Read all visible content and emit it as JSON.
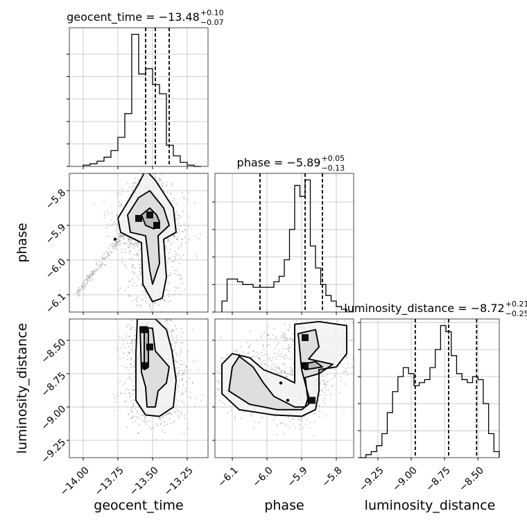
{
  "chart_data": {
    "type": "corner",
    "parameters": [
      {
        "name": "geocent_time",
        "xlabel": "geocent_time",
        "title_main": "geocent_time = −13.48",
        "title_sup": "+0.10",
        "title_sub": "−0.07",
        "median": -13.48,
        "q_lo": -13.55,
        "q_hi": -13.38,
        "range": [
          -14.1,
          -13.1
        ],
        "ticks": [
          -14.0,
          -13.75,
          -13.5,
          -13.25
        ],
        "tick_labels": [
          "−14.00",
          "−13.75",
          "−13.50",
          "−13.25"
        ],
        "hist": {
          "edges": [
            -14.0,
            -13.95,
            -13.9,
            -13.85,
            -13.8,
            -13.75,
            -13.7,
            -13.65,
            -13.6,
            -13.55,
            -13.5,
            -13.45,
            -13.4,
            -13.35,
            -13.3,
            -13.25,
            -13.2,
            -13.15
          ],
          "counts": [
            1,
            2,
            4,
            7,
            12,
            22,
            40,
            100,
            70,
            74,
            62,
            55,
            16,
            8,
            3,
            1,
            0
          ]
        }
      },
      {
        "name": "phase",
        "xlabel": "phase",
        "ylabel": "phase",
        "title_main": "phase = −5.89",
        "title_sup": "+0.05",
        "title_sub": "−0.13",
        "median": -5.89,
        "q_lo": -6.02,
        "q_hi": -5.84,
        "range": [
          -6.15,
          -5.75
        ],
        "ticks": [
          -6.1,
          -6.0,
          -5.9,
          -5.8
        ],
        "tick_labels": [
          "−6.1",
          "−6.0",
          "−5.9",
          "−5.8"
        ],
        "hist": {
          "edges": [
            -6.13,
            -6.115,
            -6.1,
            -6.085,
            -6.07,
            -6.055,
            -6.04,
            -6.025,
            -6.01,
            -5.995,
            -5.98,
            -5.965,
            -5.95,
            -5.935,
            -5.92,
            -5.905,
            -5.89,
            -5.875,
            -5.86,
            -5.845,
            -5.83,
            -5.815,
            -5.8,
            -5.785,
            -5.77
          ],
          "counts": [
            8,
            24,
            24,
            22,
            20,
            20,
            18,
            18,
            18,
            18,
            22,
            26,
            38,
            60,
            92,
            84,
            96,
            48,
            32,
            20,
            12,
            8,
            4,
            2
          ]
        }
      },
      {
        "name": "luminosity_distance",
        "xlabel": "luminosity_distance",
        "ylabel": "luminosity_distance",
        "title_main": "luminosity_distance = −8.72",
        "title_sup": "+0.21",
        "title_sub": "−0.25",
        "median": -8.72,
        "q_lo": -8.97,
        "q_hi": -8.51,
        "range": [
          -9.38,
          -8.34
        ],
        "ticks": [
          -9.25,
          -9.0,
          -8.75,
          -8.5
        ],
        "tick_labels": [
          "−9.25",
          "−9.00",
          "−8.75",
          "−8.50"
        ],
        "hist": {
          "edges": [
            -9.38,
            -9.34,
            -9.3,
            -9.26,
            -9.22,
            -9.18,
            -9.14,
            -9.1,
            -9.06,
            -9.02,
            -8.98,
            -8.94,
            -8.9,
            -8.86,
            -8.82,
            -8.78,
            -8.74,
            -8.7,
            -8.66,
            -8.62,
            -8.58,
            -8.54,
            -8.5,
            -8.46,
            -8.42,
            -8.38,
            -8.34
          ],
          "counts": [
            0,
            2,
            4,
            8,
            16,
            30,
            44,
            54,
            60,
            56,
            48,
            50,
            52,
            60,
            72,
            88,
            84,
            68,
            56,
            52,
            50,
            54,
            52,
            36,
            16,
            4
          ]
        }
      }
    ],
    "hist_yticks": {
      "geocent_time": [
        0,
        17,
        34,
        51,
        68,
        85
      ],
      "phase": [
        0,
        20,
        40,
        60,
        80
      ],
      "luminosity_distance": [
        0,
        18,
        36,
        54,
        72,
        90
      ]
    },
    "pairs": [
      {
        "x": "geocent_time",
        "y": "phase",
        "contours": [
          [
            [
              -13.58,
              -5.87
            ],
            [
              -13.52,
              -5.85
            ],
            [
              -13.47,
              -5.87
            ],
            [
              -13.45,
              -5.89
            ],
            [
              -13.49,
              -5.91
            ],
            [
              -13.55,
              -5.9
            ]
          ],
          [
            [
              -13.68,
              -5.87
            ],
            [
              -13.6,
              -5.82
            ],
            [
              -13.52,
              -5.8
            ],
            [
              -13.42,
              -5.85
            ],
            [
              -13.38,
              -5.9
            ],
            [
              -13.46,
              -5.93
            ],
            [
              -13.45,
              -6.01
            ],
            [
              -13.5,
              -6.07
            ],
            [
              -13.52,
              -6.03
            ],
            [
              -13.55,
              -5.93
            ],
            [
              -13.66,
              -5.92
            ]
          ],
          [
            [
              -13.75,
              -5.88
            ],
            [
              -13.6,
              -5.78
            ],
            [
              -13.55,
              -5.74
            ],
            [
              -13.48,
              -5.77
            ],
            [
              -13.35,
              -5.85
            ],
            [
              -13.33,
              -5.92
            ],
            [
              -13.42,
              -5.94
            ],
            [
              -13.4,
              -6.05
            ],
            [
              -13.43,
              -6.11
            ],
            [
              -13.5,
              -6.12
            ],
            [
              -13.57,
              -6.07
            ],
            [
              -13.58,
              -5.95
            ],
            [
              -13.73,
              -5.92
            ]
          ]
        ],
        "peaks": [
          [
            -13.52,
            -5.87
          ],
          [
            -13.47,
            -5.9
          ],
          [
            -13.6,
            -5.88
          ]
        ],
        "extra_points": [
          [
            -13.77,
            -5.94
          ]
        ]
      },
      {
        "x": "geocent_time",
        "y": "luminosity_distance",
        "contours": [
          [
            [
              -13.56,
              -8.4
            ],
            [
              -13.53,
              -8.42
            ],
            [
              -13.53,
              -8.7
            ],
            [
              -13.56,
              -8.72
            ]
          ],
          [
            [
              -13.59,
              -8.4
            ],
            [
              -13.5,
              -8.41
            ],
            [
              -13.48,
              -8.58
            ],
            [
              -13.38,
              -8.7
            ],
            [
              -13.4,
              -8.82
            ],
            [
              -13.46,
              -8.88
            ],
            [
              -13.48,
              -9.0
            ],
            [
              -13.54,
              -9.0
            ],
            [
              -13.55,
              -8.85
            ],
            [
              -13.58,
              -8.74
            ]
          ],
          [
            [
              -13.61,
              -8.34
            ],
            [
              -13.48,
              -8.34
            ],
            [
              -13.4,
              -8.42
            ],
            [
              -13.36,
              -8.58
            ],
            [
              -13.33,
              -8.8
            ],
            [
              -13.35,
              -9.0
            ],
            [
              -13.45,
              -9.07
            ],
            [
              -13.55,
              -9.06
            ],
            [
              -13.62,
              -8.95
            ],
            [
              -13.62,
              -8.6
            ]
          ]
        ],
        "peaks": [
          [
            -13.56,
            -8.42
          ],
          [
            -13.56,
            -8.69
          ],
          [
            -13.52,
            -8.55
          ]
        ]
      },
      {
        "x": "phase",
        "y": "luminosity_distance",
        "contours": [
          [
            [
              -5.9,
              -8.68
            ],
            [
              -5.86,
              -8.66
            ],
            [
              -5.84,
              -8.7
            ],
            [
              -5.89,
              -8.72
            ]
          ],
          [
            [
              -6.1,
              -8.7
            ],
            [
              -6.08,
              -8.62
            ],
            [
              -6.04,
              -8.7
            ],
            [
              -6.01,
              -8.82
            ],
            [
              -5.98,
              -8.92
            ],
            [
              -5.92,
              -9.0
            ],
            [
              -5.89,
              -9.0
            ],
            [
              -5.88,
              -8.92
            ],
            [
              -5.9,
              -8.72
            ],
            [
              -5.91,
              -8.45
            ],
            [
              -5.86,
              -8.42
            ],
            [
              -5.85,
              -8.55
            ],
            [
              -5.88,
              -8.64
            ],
            [
              -5.81,
              -8.68
            ],
            [
              -5.85,
              -8.75
            ],
            [
              -5.89,
              -8.78
            ],
            [
              -5.88,
              -8.98
            ],
            [
              -5.9,
              -9.02
            ],
            [
              -5.97,
              -9.02
            ],
            [
              -6.05,
              -8.98
            ],
            [
              -6.11,
              -8.88
            ]
          ],
          [
            [
              -6.13,
              -8.68
            ],
            [
              -6.1,
              -8.6
            ],
            [
              -6.05,
              -8.63
            ],
            [
              -6.01,
              -8.72
            ],
            [
              -5.95,
              -8.78
            ],
            [
              -5.92,
              -8.82
            ],
            [
              -5.92,
              -8.5
            ],
            [
              -5.92,
              -8.38
            ],
            [
              -5.85,
              -8.36
            ],
            [
              -5.77,
              -8.39
            ],
            [
              -5.77,
              -8.6
            ],
            [
              -5.8,
              -8.7
            ],
            [
              -5.85,
              -8.72
            ],
            [
              -5.85,
              -8.88
            ],
            [
              -5.86,
              -9.02
            ],
            [
              -5.9,
              -9.07
            ],
            [
              -5.98,
              -9.06
            ],
            [
              -6.08,
              -9.02
            ],
            [
              -6.13,
              -8.9
            ]
          ]
        ],
        "peaks": [
          [
            -5.89,
            -8.69
          ],
          [
            -5.87,
            -8.95
          ],
          [
            -5.89,
            -8.48
          ]
        ],
        "extra_points": [
          [
            -5.96,
            -8.82
          ],
          [
            -5.94,
            -8.95
          ]
        ]
      }
    ]
  }
}
